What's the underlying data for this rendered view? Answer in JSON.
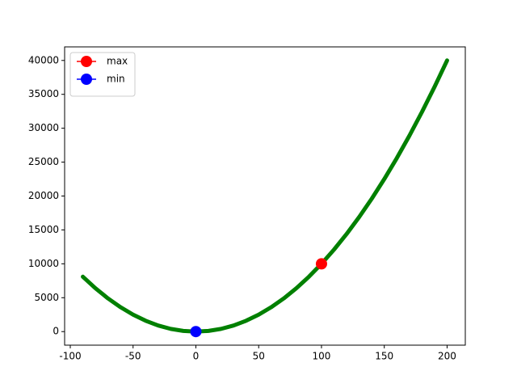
{
  "chart_data": {
    "type": "line",
    "series": [
      {
        "color": "#008000",
        "x": [
          -90,
          -80,
          -70,
          -60,
          -50,
          -40,
          -30,
          -20,
          -10,
          0,
          10,
          20,
          30,
          40,
          50,
          60,
          70,
          80,
          90,
          100,
          110,
          120,
          130,
          140,
          150,
          160,
          170,
          180,
          190,
          200
        ],
        "values": [
          8100,
          6400,
          4900,
          3600,
          2500,
          1600,
          900,
          400,
          100,
          0,
          100,
          400,
          900,
          1600,
          2500,
          3600,
          4900,
          6400,
          8100,
          10000,
          12100,
          14400,
          16900,
          19600,
          22500,
          25600,
          28900,
          32400,
          36100,
          40000
        ]
      },
      {
        "name": "max",
        "color": "#ff0000",
        "x": [
          100
        ],
        "values": [
          10000
        ]
      },
      {
        "name": "min",
        "color": "#0000ff",
        "x": [
          0
        ],
        "values": [
          0
        ]
      }
    ],
    "xlim": [
      -104.5,
      214.5
    ],
    "xticks": [
      -100,
      -50,
      0,
      50,
      100,
      150,
      200
    ],
    "ylim": [
      -2000,
      42000
    ],
    "yticks": [
      0,
      5000,
      10000,
      15000,
      20000,
      25000,
      30000,
      35000,
      40000
    ],
    "legend": "upper left"
  }
}
